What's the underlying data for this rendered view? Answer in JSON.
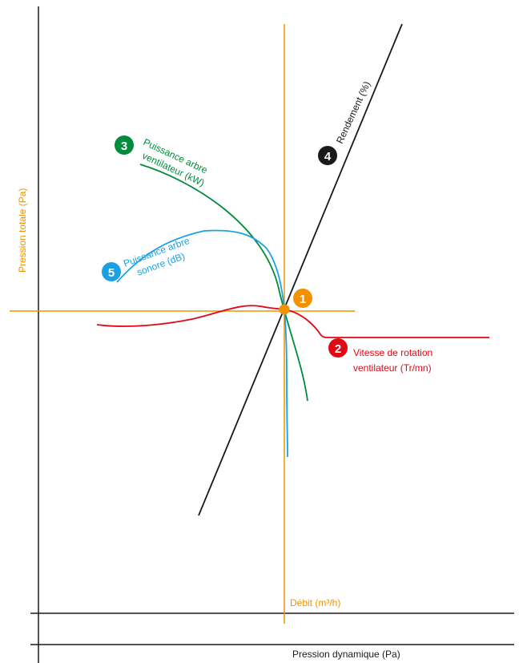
{
  "axes": {
    "pression_totale": "Pression totale  (Pa)",
    "debit": "Débit (m³/h)",
    "pression_dynamique": "Pression dynamique (Pa)"
  },
  "curves": {
    "vitesse": {
      "number": "2",
      "line1": "Vitesse de rotation",
      "line2": "ventilateur (Tr/mn)",
      "color": "#e30613"
    },
    "puissance_kw": {
      "number": "3",
      "line1": "Puissance arbre",
      "line2": "ventilateur (kW)",
      "color": "#008c3c"
    },
    "rendement": {
      "number": "4",
      "label": "Rendement (%)",
      "color": "#1a1a1a"
    },
    "puissance_db": {
      "number": "5",
      "line1": "Puissance arbre",
      "line2": "sonore (dB)",
      "color": "#1ba1e2"
    }
  },
  "operating_point": {
    "number": "1",
    "color": "#f39200"
  }
}
